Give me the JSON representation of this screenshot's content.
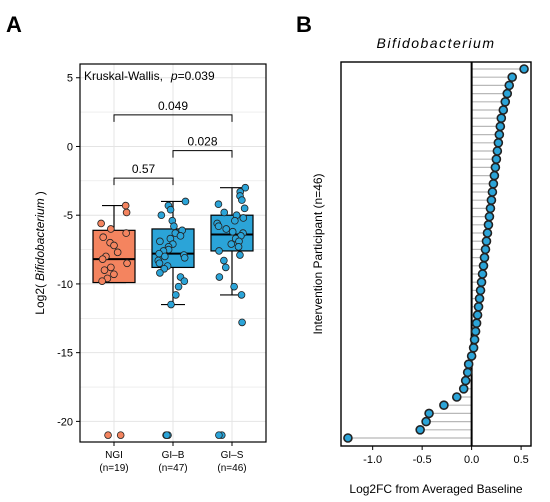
{
  "colors": {
    "ngi": "#f4845f",
    "gi": "#2ba4d8",
    "point_stroke": "#222222",
    "stem": "#b8b8b8",
    "grid": "#e4e4e4"
  },
  "chart_data": [
    {
      "panel_label": "A",
      "type": "box",
      "ylabel_prefix": "Log2(",
      "ylabel_italic": "Bifidobacterium",
      "ylabel_suffix": ")",
      "ylim": [
        -21.5,
        6
      ],
      "yticks": [
        5,
        0,
        -5,
        -10,
        -15,
        -20
      ],
      "grid": true,
      "test_label": "Kruskal-Wallis,",
      "p_symbol": "p",
      "p_value": "=0.039",
      "groups": [
        {
          "name": "NGI",
          "n_label": "(n=19)",
          "color_key": "ngi",
          "whisker_low": -9.9,
          "q1": -9.9,
          "median": -8.2,
          "q3": -6.1,
          "whisker_high": -4.3,
          "points": [
            -4.3,
            -4.8,
            -5.6,
            -6.0,
            -6.3,
            -6.6,
            -7.0,
            -7.2,
            -7.7,
            -8.0,
            -8.2,
            -8.5,
            -8.8,
            -9.0,
            -9.3,
            -9.6,
            -9.8,
            -21.0,
            -21.0
          ]
        },
        {
          "name": "GI–B",
          "n_label": "(n=47)",
          "color_key": "gi",
          "whisker_low": -11.5,
          "q1": -8.8,
          "median": -7.8,
          "q3": -6.0,
          "whisker_high": -4.0,
          "points": [
            -4.0,
            -4.3,
            -4.6,
            -5.0,
            -5.4,
            -5.8,
            -6.1,
            -6.3,
            -6.5,
            -6.7,
            -6.9,
            -7.1,
            -7.3,
            -7.5,
            -7.6,
            -7.8,
            -7.9,
            -8.0,
            -8.1,
            -8.3,
            -8.5,
            -8.7,
            -8.9,
            -9.2,
            -9.5,
            -9.8,
            -10.2,
            -10.8,
            -11.5,
            -21.0,
            -21.0,
            -21.0
          ]
        },
        {
          "name": "GI–S",
          "n_label": "(n=46)",
          "color_key": "gi",
          "whisker_low": -10.8,
          "q1": -7.6,
          "median": -6.4,
          "q3": -5.0,
          "whisker_high": -3.0,
          "points": [
            -3.0,
            -3.3,
            -3.6,
            -3.9,
            -4.2,
            -4.5,
            -4.8,
            -5.0,
            -5.2,
            -5.4,
            -5.6,
            -5.8,
            -6.0,
            -6.2,
            -6.3,
            -6.5,
            -6.7,
            -6.9,
            -7.1,
            -7.3,
            -7.6,
            -7.9,
            -8.3,
            -8.8,
            -9.5,
            -10.2,
            -10.8,
            -12.8,
            -21.0,
            -21.0
          ]
        }
      ],
      "comparisons": [
        {
          "from": 0,
          "to": 2,
          "y": 2.3,
          "label": "0.049"
        },
        {
          "from": 0,
          "to": 1,
          "y": -2.3,
          "label": "0.57"
        },
        {
          "from": 1,
          "to": 2,
          "y": -0.3,
          "label": "0.028"
        }
      ]
    },
    {
      "panel_label": "B",
      "type": "lollipop",
      "title": "Bifidobacterium",
      "xlabel": "Log2FC from Averaged Baseline",
      "ylabel": "Intervention Participant (n=46)",
      "xlim": [
        -1.32,
        0.6
      ],
      "xticks": [
        {
          "value": -1.0,
          "label": "-1.0"
        },
        {
          "value": -0.5,
          "label": "-0.5"
        },
        {
          "value": 0.0,
          "label": "0.0"
        },
        {
          "value": 0.5,
          "label": "0.5"
        }
      ],
      "values": [
        -1.25,
        -0.52,
        -0.46,
        -0.43,
        -0.28,
        -0.15,
        -0.08,
        -0.06,
        -0.04,
        -0.03,
        0.0,
        0.02,
        0.03,
        0.04,
        0.05,
        0.06,
        0.07,
        0.08,
        0.09,
        0.1,
        0.11,
        0.12,
        0.13,
        0.14,
        0.15,
        0.16,
        0.17,
        0.18,
        0.19,
        0.2,
        0.21,
        0.22,
        0.23,
        0.24,
        0.25,
        0.26,
        0.27,
        0.28,
        0.29,
        0.3,
        0.32,
        0.34,
        0.36,
        0.38,
        0.41,
        0.53
      ]
    }
  ]
}
